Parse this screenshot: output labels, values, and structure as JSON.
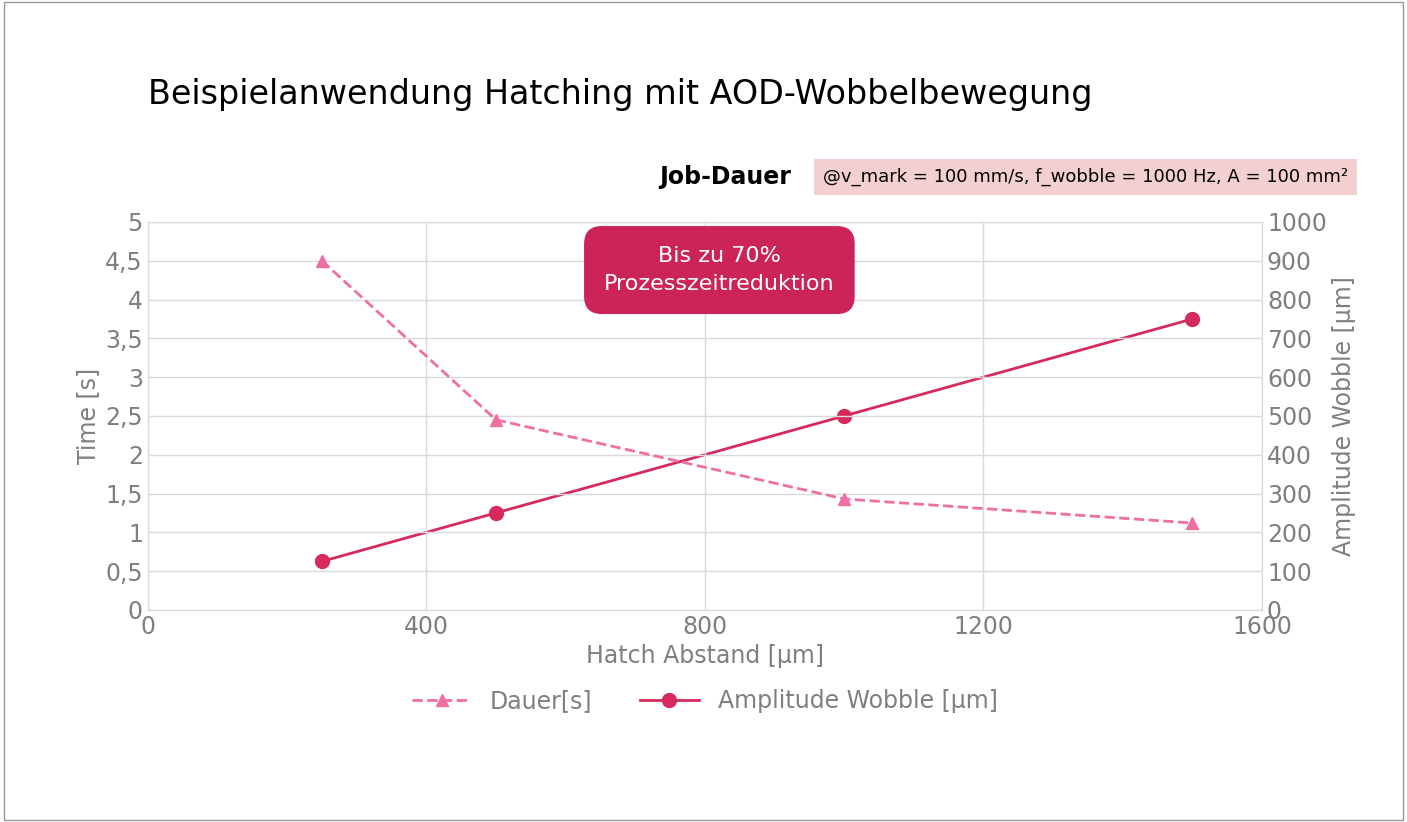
{
  "chart_data": {
    "type": "line",
    "title": "Beispielanwendung Hatching mit AOD-Wobbelbewegung",
    "subtitle": "Job-Dauer",
    "annotations": [
      "@v_mark = 100 mm/s, f_wobble = 1000 Hz, A = 100 mm²",
      "Bis zu 70%\nProzesszeitreduktion"
    ],
    "x_label": "Hatch Abstand [µm]",
    "y_label": "Time [s]",
    "y2_label": "Amplitude Wobble [µm]",
    "x": [
      250,
      500,
      1000,
      1500
    ],
    "series": [
      {
        "name": "Dauer[s]",
        "color": "#ef6fa3",
        "marker": "triangle",
        "line_style": "dashed",
        "values": [
          4.5,
          2.45,
          1.43,
          1.12
        ]
      },
      {
        "name": "Amplitude Wobble [µm]",
        "color": "#d62a5c",
        "marker": "circle",
        "line_style": "solid",
        "axis": "y2",
        "values": [
          125,
          250,
          500,
          750
        ]
      }
    ],
    "xlim": [
      0,
      1600
    ],
    "xticks": [
      0,
      400,
      800,
      1200,
      1600
    ],
    "ylim": [
      0,
      5
    ],
    "yticks": [
      0,
      {
        "value": 0.5,
        "label": "0,5"
      },
      1,
      {
        "value": 1.5,
        "label": "1,5"
      },
      2,
      {
        "value": 2.5,
        "label": "2,5"
      },
      3,
      {
        "value": 3.5,
        "label": "3,5"
      },
      4,
      {
        "value": 4.5,
        "label": "4,5"
      },
      5
    ],
    "y2lim": [
      0,
      1000
    ],
    "y2ticks": [
      0,
      100,
      200,
      300,
      400,
      500,
      600,
      700,
      800,
      900,
      1000
    ],
    "grid": true,
    "legend": "lower center"
  }
}
